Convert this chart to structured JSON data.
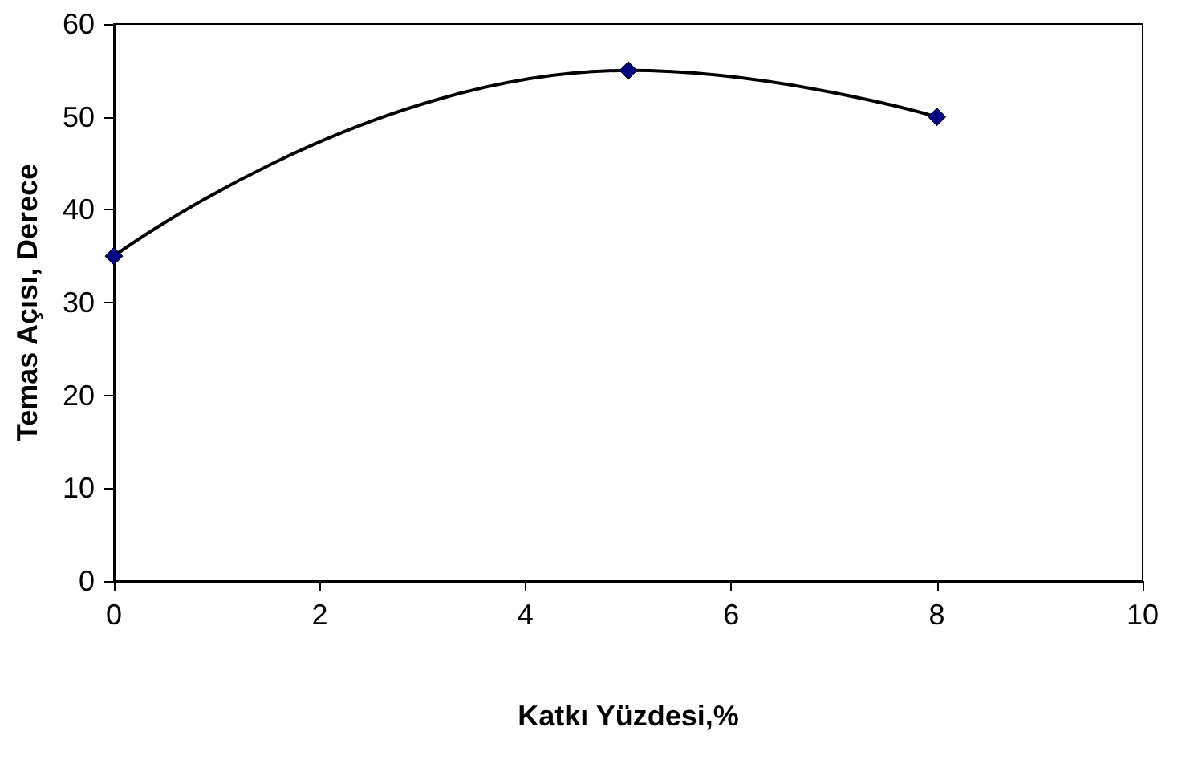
{
  "chart_data": {
    "type": "line",
    "xlabel": "Katkı Yüzdesi,%",
    "ylabel": "Temas Açısı, Derece",
    "x": [
      0,
      5,
      8
    ],
    "series": [
      {
        "color": "#000080",
        "values": [
          35,
          55,
          50
        ]
      }
    ],
    "xlim": [
      0,
      10
    ],
    "xticks": [
      0,
      2,
      4,
      6,
      8,
      10
    ],
    "ylim": [
      0,
      60
    ],
    "yticks": [
      0,
      10,
      20,
      30,
      40,
      50,
      60
    ],
    "grid": false,
    "marker": "diamond",
    "line_style": "solid"
  }
}
